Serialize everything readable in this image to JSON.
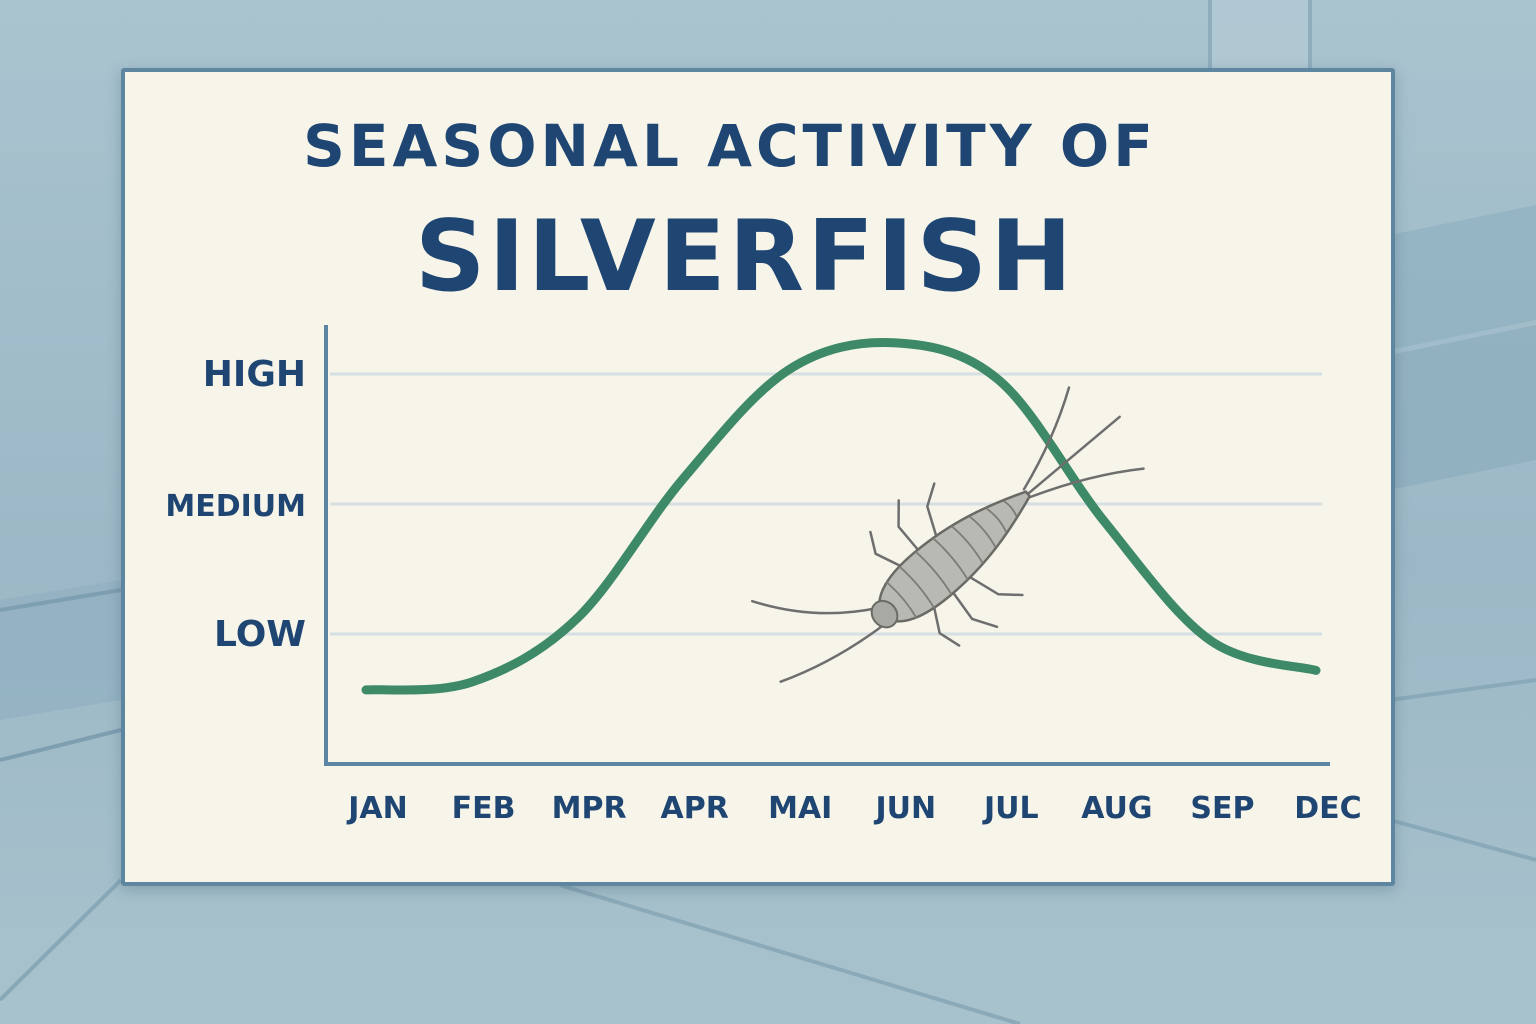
{
  "chart_data": {
    "type": "line",
    "title_line1": "SEASONAL ACTIVITY OF",
    "title_line2": "SILVERFISH",
    "x": [
      "JAN",
      "FEB",
      "MPR",
      "APR",
      "MAI",
      "JUN",
      "JUL",
      "AUG",
      "SEP",
      "DEC"
    ],
    "y_ticks": [
      "LOW",
      "MEDIUM",
      "HIGH"
    ],
    "series": [
      {
        "values": [
          0.57,
          0.63,
          1.12,
          2.19,
          3.03,
          3.24,
          2.95,
          1.86,
          0.95,
          0.72
        ]
      }
    ],
    "ylim": [
      0,
      3.5
    ],
    "grid": true,
    "line_color": "#3e8a68",
    "illustration": "silverfish-icon"
  }
}
